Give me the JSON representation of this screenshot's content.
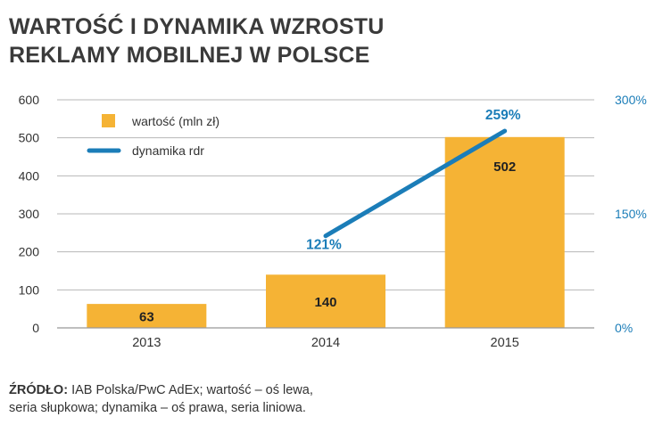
{
  "title_lines": [
    "WARTOŚĆ I DYNAMIKA WZROSTU",
    "REKLAMY MOBILNEJ W POLSCE"
  ],
  "colors": {
    "bar": "#F5B335",
    "line": "#1B7DB8",
    "axis_right_text": "#1B7DB8",
    "grid": "#b7b7b7",
    "text": "#333333"
  },
  "chart_data": {
    "type": "bar+line",
    "categories": [
      "2013",
      "2014",
      "2015"
    ],
    "series": [
      {
        "name": "wartość (mln zł)",
        "type": "bar",
        "axis": "left",
        "values": [
          63,
          140,
          502
        ],
        "labels": [
          "63",
          "140",
          "502"
        ]
      },
      {
        "name": "dynamika rdr",
        "type": "line",
        "axis": "right",
        "x": [
          "2014",
          "2015"
        ],
        "values": [
          121,
          259
        ],
        "labels": [
          "121%",
          "259%"
        ]
      }
    ],
    "left_axis": {
      "ylim": [
        0,
        600
      ],
      "ticks": [
        "0",
        "100",
        "200",
        "300",
        "400",
        "500",
        "600"
      ]
    },
    "right_axis": {
      "ylim": [
        0,
        300
      ],
      "ticks": [
        "0%",
        "150%",
        "300%"
      ]
    },
    "legend": {
      "position": "top-left"
    },
    "grid": true
  },
  "source": {
    "label": "ŹRÓDŁO:",
    "text_line1": " IAB Polska/PwC AdEx; wartość – oś lewa,",
    "text_line2": "seria słupkowa; dynamika – oś prawa, seria liniowa."
  }
}
